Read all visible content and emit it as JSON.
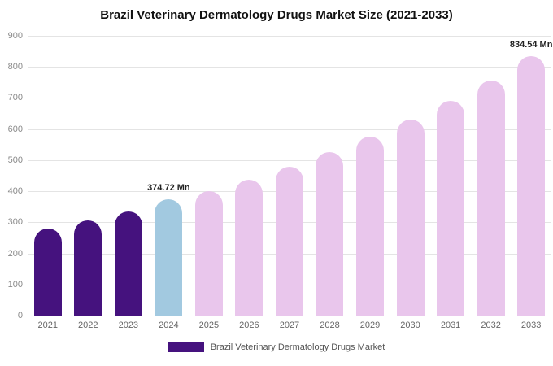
{
  "title": "Brazil Veterinary Dermatology Drugs Market Size (2021-2033)",
  "legend": {
    "label": "Brazil Veterinary Dermatology Drugs Market",
    "color": "#45127e"
  },
  "chart_data": {
    "type": "bar",
    "title": "Brazil Veterinary Dermatology Drugs Market Size (2021-2033)",
    "categories": [
      "2021",
      "2022",
      "2023",
      "2024",
      "2025",
      "2026",
      "2027",
      "2028",
      "2029",
      "2030",
      "2031",
      "2032",
      "2033"
    ],
    "values": [
      280,
      306,
      336,
      374.72,
      401,
      438,
      480,
      526,
      576,
      631,
      690,
      756,
      834.54
    ],
    "bar_colors": [
      "#45127e",
      "#45127e",
      "#45127e",
      "#a2c9e0",
      "#e9c6ec",
      "#e9c6ec",
      "#e9c6ec",
      "#e9c6ec",
      "#e9c6ec",
      "#e9c6ec",
      "#e9c6ec",
      "#e9c6ec",
      "#e9c6ec"
    ],
    "xlabel": "",
    "ylabel": "",
    "ylim": [
      0,
      900
    ],
    "ytick_interval": 100,
    "grid": true,
    "legend_position": "bottom",
    "annotations": [
      {
        "index": 3,
        "text": "374.72 Mn"
      },
      {
        "index": 12,
        "text": "834.54 Mn"
      }
    ]
  }
}
